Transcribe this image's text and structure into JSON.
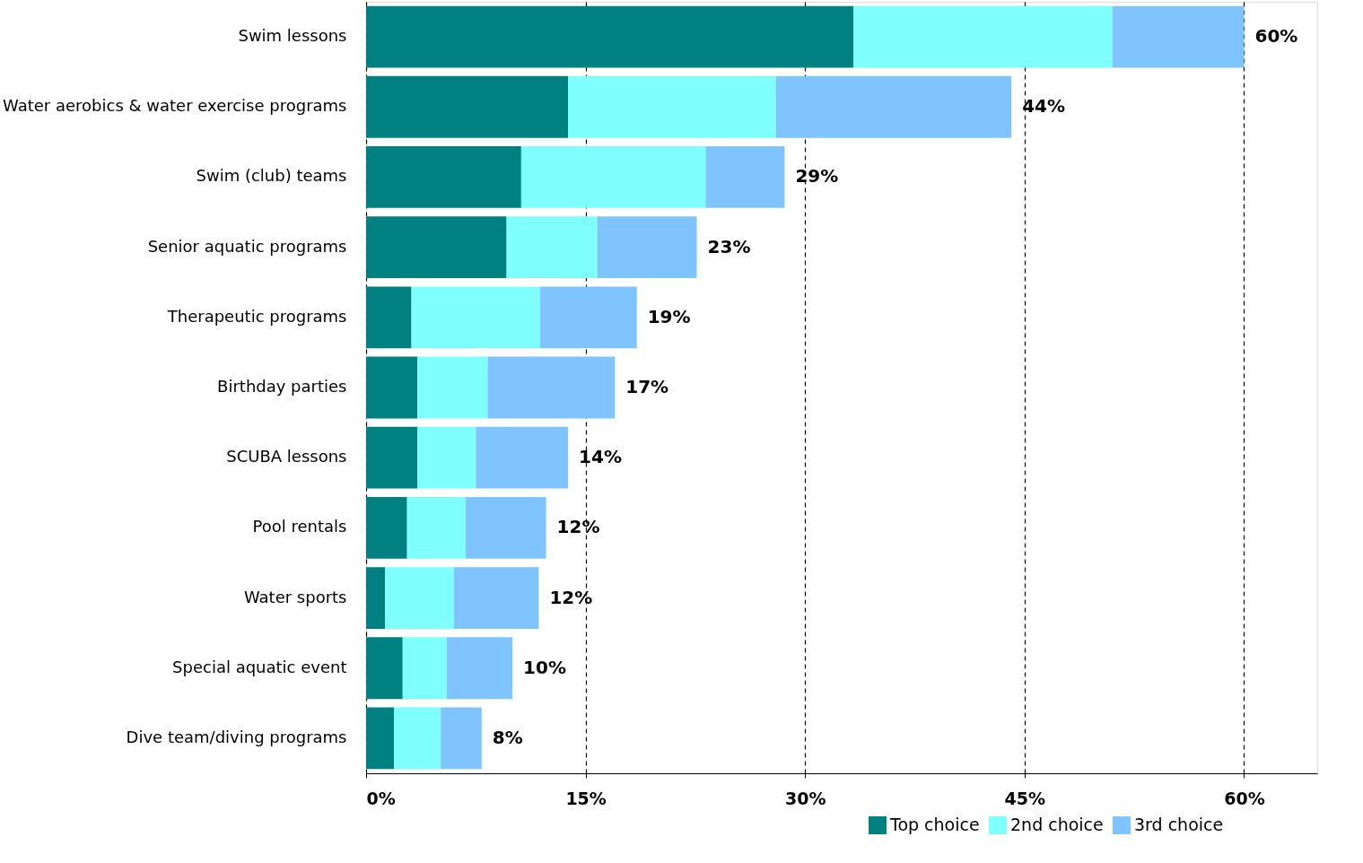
{
  "chart_data": {
    "type": "bar",
    "orientation": "horizontal",
    "stacked": true,
    "categories": [
      "Swim lessons",
      "Water aerobics & water exercise programs",
      "Swim (club) teams",
      "Senior aquatic programs",
      "Therapeutic programs",
      "Birthday parties",
      "SCUBA lessons",
      "Pool rentals",
      "Water sports",
      "Special aquatic event",
      "Dive team/diving programs"
    ],
    "series": [
      {
        "name": "Top choice",
        "color": "#008080",
        "values": [
          33.3,
          13.8,
          10.6,
          9.6,
          3.1,
          3.5,
          3.5,
          2.8,
          1.3,
          2.5,
          1.9
        ]
      },
      {
        "name": "2nd choice",
        "color": "#80ffff",
        "values": [
          17.7,
          14.2,
          12.6,
          6.2,
          8.8,
          4.8,
          4.0,
          4.0,
          4.7,
          3.0,
          3.2
        ]
      },
      {
        "name": "3rd choice",
        "color": "#80c4ff",
        "values": [
          9.0,
          16.1,
          5.4,
          6.8,
          6.6,
          8.7,
          6.3,
          5.5,
          5.8,
          4.5,
          2.8
        ]
      }
    ],
    "totals": [
      "60%",
      "44%",
      "29%",
      "23%",
      "19%",
      "17%",
      "14%",
      "12%",
      "12%",
      "10%",
      "8%"
    ],
    "xlim": [
      0,
      65
    ],
    "xticks": [
      {
        "value": 0,
        "label": "0%"
      },
      {
        "value": 15,
        "label": "15%"
      },
      {
        "value": 30,
        "label": "30%"
      },
      {
        "value": 45,
        "label": "45%"
      },
      {
        "value": 60,
        "label": "60%"
      }
    ],
    "grid": "x",
    "legend": "bottom right"
  }
}
